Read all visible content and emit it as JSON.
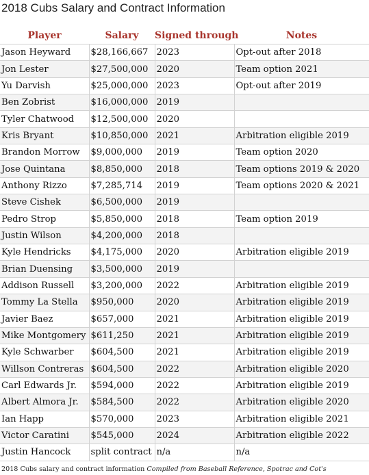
{
  "title": "2018 Cubs Salary and Contract Information",
  "headers": [
    "Player",
    "Salary",
    "Signed through",
    "Notes"
  ],
  "rows": [
    [
      "Jason Heyward",
      "$28,166,667",
      "2023",
      "Opt-out after 2018"
    ],
    [
      "Jon Lester",
      "$27,500,000",
      "2020",
      "Team option 2021"
    ],
    [
      "Yu Darvish",
      "$25,000,000",
      "2023",
      "Opt-out after 2019"
    ],
    [
      "Ben Zobrist",
      "$16,000,000",
      "2019",
      ""
    ],
    [
      "Tyler Chatwood",
      "$12,500,000",
      "2020",
      ""
    ],
    [
      "Kris Bryant",
      "$10,850,000",
      "2021",
      "Arbitration eligible 2019"
    ],
    [
      "Brandon Morrow",
      "$9,000,000",
      "2019",
      "Team option 2020"
    ],
    [
      "Jose Quintana",
      "$8,850,000",
      "2018",
      "Team options 2019 & 2020"
    ],
    [
      "Anthony Rizzo",
      "$7,285,714",
      "2019",
      "Team options 2020 & 2021"
    ],
    [
      "Steve Cishek",
      "$6,500,000",
      "2019",
      ""
    ],
    [
      "Pedro Strop",
      "$5,850,000",
      "2018",
      "Team option 2019"
    ],
    [
      "Justin Wilson",
      "$4,200,000",
      "2018",
      ""
    ],
    [
      "Kyle Hendricks",
      "$4,175,000",
      "2020",
      "Arbitration eligible 2019"
    ],
    [
      "Brian Duensing",
      "$3,500,000",
      "2019",
      ""
    ],
    [
      "Addison Russell",
      "$3,200,000",
      "2022",
      "Arbitration eligible 2019"
    ],
    [
      "Tommy La Stella",
      "$950,000",
      "2020",
      "Arbitration eligible 2019"
    ],
    [
      "Javier Baez",
      "$657,000",
      "2021",
      "Arbitration eligible 2019"
    ],
    [
      "Mike Montgomery",
      "$611,250",
      "2021",
      "Arbitration eligible 2019"
    ],
    [
      "Kyle Schwarber",
      "$604,500",
      "2021",
      "Arbitration eligible 2019"
    ],
    [
      "Willson Contreras",
      "$604,500",
      "2022",
      "Arbitration eligible 2020"
    ],
    [
      "Carl Edwards Jr.",
      "$594,000",
      "2022",
      "Arbitration eligible 2019"
    ],
    [
      "Albert Almora Jr.",
      "$584,500",
      "2022",
      "Arbitration eligible 2020"
    ],
    [
      "Ian Happ",
      "$570,000",
      "2023",
      "Arbitration eligible 2021"
    ],
    [
      "Victor Caratini",
      "$545,000",
      "2024",
      "Arbitration eligible 2022"
    ],
    [
      "Justin Hancock",
      "split contract",
      "n/a",
      "n/a"
    ]
  ],
  "footer": {
    "caption": "2018 Cubs salary and contract information",
    "credit": "Compiled from Baseball Reference, Spotrac and Cot's"
  }
}
